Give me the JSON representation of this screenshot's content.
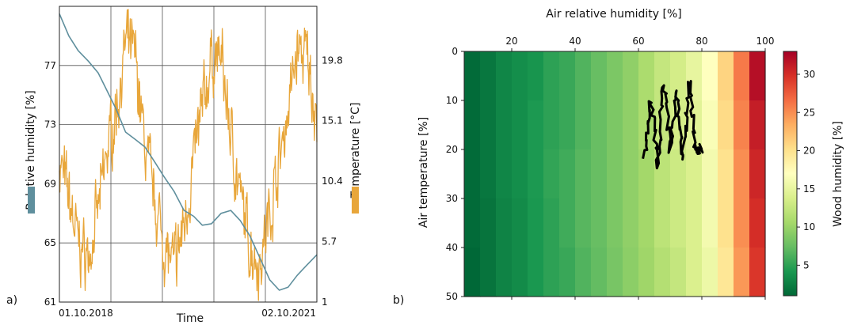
{
  "chart_data": [
    {
      "panel": "a)",
      "type": "line",
      "xlabel": "Time",
      "ylabel_left": "Relative humidity [%]",
      "ylabel_right": "Temperature [°C]",
      "x_tick_labels": [
        "01.10.2018",
        "02.10.2021"
      ],
      "x_range": [
        "2018-10-01",
        "2021-10-02"
      ],
      "left_axis": {
        "ticks": [
          "61",
          "65",
          "69",
          "73",
          "77"
        ],
        "ylim": [
          61,
          81
        ]
      },
      "right_axis": {
        "ticks": [
          "1",
          "5.7",
          "10.4",
          "15.1",
          "19.8"
        ],
        "ylim": [
          1,
          24
        ]
      },
      "grid": true,
      "colors": {
        "humidity": "#5f8f9d",
        "temperature": "#e8a63a"
      },
      "series": [
        {
          "axis": "left",
          "x": [
            "2018-10-01",
            "2018-11-10",
            "2018-12-20",
            "2019-02-01",
            "2019-03-15",
            "2019-04-25",
            "2019-06-01",
            "2019-07-10",
            "2019-08-20",
            "2019-09-30",
            "2019-11-10",
            "2019-12-20",
            "2020-02-01",
            "2020-03-15",
            "2020-04-25",
            "2020-06-01",
            "2020-07-10",
            "2020-08-20",
            "2020-09-30",
            "2020-11-10",
            "2020-12-20",
            "2021-02-01",
            "2021-03-15",
            "2021-04-25",
            "2021-06-01",
            "2021-07-10",
            "2021-08-20",
            "2021-10-02"
          ],
          "values": [
            80.5,
            79,
            78,
            77.3,
            76.5,
            75.2,
            74,
            72.5,
            72,
            71.5,
            70.5,
            69.5,
            68.5,
            67.2,
            66.8,
            66.2,
            66.3,
            67,
            67.2,
            66.5,
            65.5,
            64,
            62.5,
            61.8,
            62,
            62.8,
            63.5,
            64.2
          ]
        },
        {
          "axis": "right",
          "x": [
            "2018-10-01",
            "2018-11-10",
            "2018-12-20",
            "2019-02-01",
            "2019-03-15",
            "2019-04-25",
            "2019-06-01",
            "2019-07-10",
            "2019-08-20",
            "2019-09-30",
            "2019-11-10",
            "2019-12-20",
            "2020-02-01",
            "2020-03-15",
            "2020-04-25",
            "2020-06-01",
            "2020-07-10",
            "2020-08-20",
            "2020-09-30",
            "2020-11-10",
            "2020-12-20",
            "2021-02-01",
            "2021-03-15",
            "2021-04-25",
            "2021-06-01",
            "2021-07-10",
            "2021-08-20",
            "2021-10-02"
          ],
          "values": [
            12,
            9,
            5.5,
            4.5,
            8,
            13,
            16,
            21,
            20,
            13,
            9,
            5.5,
            3.5,
            7,
            12,
            16,
            20,
            20,
            14,
            9,
            5.5,
            4,
            8,
            12,
            16,
            20.5,
            20,
            15.5
          ]
        }
      ]
    },
    {
      "panel": "b)",
      "type": "heatmap",
      "xlabel": "Air relative humidity [%]",
      "ylabel": "Air temperature [%]",
      "colorbar_label": "Wood humidity [%]",
      "xlim": [
        5,
        100
      ],
      "ylim": [
        0,
        50
      ],
      "x_ticks": [
        "20",
        "40",
        "60",
        "80",
        "100"
      ],
      "y_ticks": [
        "0",
        "10",
        "20",
        "30",
        "40",
        "50"
      ],
      "colorbar_ticks": [
        "5",
        "10",
        "15",
        "20",
        "25",
        "30"
      ],
      "colorbar_range": [
        1,
        33
      ],
      "colormap": "RdYlGn_r",
      "rh_bins": [
        5,
        10,
        15,
        20,
        25,
        30,
        35,
        40,
        45,
        50,
        55,
        60,
        65,
        70,
        75,
        80,
        85,
        90,
        95,
        100
      ],
      "t_bins": [
        0,
        10,
        20,
        30,
        40,
        50
      ],
      "wood_humidity_rows": [
        [
          1.2,
          2.0,
          3.0,
          3.5,
          4.0,
          5.0,
          5.5,
          6.5,
          7.5,
          8.5,
          9.5,
          11.0,
          12.5,
          13.5,
          15.0,
          17.0,
          21.0,
          26.0,
          32.0
        ],
        [
          1.2,
          2.0,
          3.0,
          3.5,
          4.3,
          5.0,
          5.5,
          6.5,
          7.5,
          8.5,
          9.5,
          11.0,
          12.5,
          13.5,
          14.5,
          16.5,
          20.5,
          25.5,
          31.0
        ],
        [
          1.2,
          2.0,
          3.0,
          3.5,
          4.3,
          5.2,
          5.8,
          6.8,
          7.5,
          8.5,
          9.5,
          10.5,
          12.0,
          13.0,
          14.0,
          16.0,
          20.0,
          25.0,
          30.5
        ],
        [
          1.2,
          1.8,
          2.8,
          3.3,
          4.2,
          5.0,
          5.8,
          6.8,
          7.5,
          8.5,
          9.5,
          10.5,
          12.0,
          13.0,
          14.0,
          16.0,
          20.0,
          25.0,
          30.0
        ],
        [
          1.0,
          1.8,
          2.8,
          3.3,
          4.2,
          5.0,
          5.5,
          6.5,
          7.3,
          8.3,
          9.3,
          10.3,
          11.5,
          12.5,
          14.0,
          15.5,
          19.5,
          24.5,
          29.5
        ]
      ],
      "overlay": {
        "color": "#000000",
        "x": [
          62,
          64,
          66,
          68,
          70,
          72,
          74,
          76,
          78,
          80
        ],
        "y": [
          22,
          10,
          23,
          6,
          20,
          8,
          22,
          6,
          20,
          20
        ]
      }
    }
  ]
}
